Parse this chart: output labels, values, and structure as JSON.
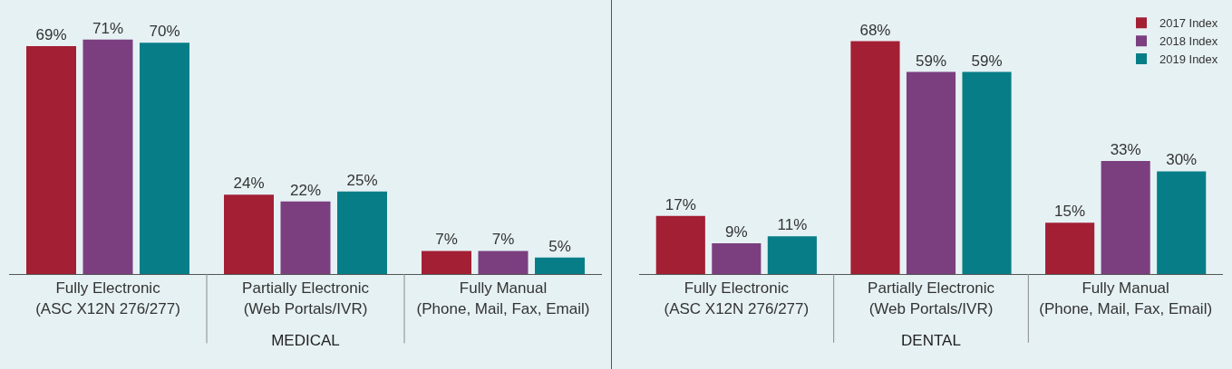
{
  "chart_data": [
    {
      "type": "bar",
      "xlabel": "MEDICAL",
      "categories": [
        "Fully Electronic\n(ASC X12N 276/277)",
        "Partially Electronic\n(Web Portals/IVR)",
        "Fully Manual\n(Phone, Mail, Fax, Email)"
      ],
      "series": [
        {
          "color": "#a31f34",
          "values": [
            69,
            24,
            7
          ],
          "value_labels": [
            "69%",
            "24%",
            "7%"
          ]
        },
        {
          "color": "#7b3f80",
          "values": [
            71,
            22,
            7
          ],
          "value_labels": [
            "71%",
            "22%",
            "7%"
          ]
        },
        {
          "color": "#077e87",
          "values": [
            70,
            25,
            5
          ],
          "value_labels": [
            "70%",
            "25%",
            "5%"
          ]
        }
      ],
      "legend": false,
      "tick_labels": "x"
    },
    {
      "type": "bar",
      "xlabel": "DENTAL",
      "categories": [
        "Fully Electronic\n(ASC X12N 276/277)",
        "Partially Electronic\n(Web Portals/IVR)",
        "Fully Manual\n(Phone, Mail, Fax, Email)"
      ],
      "series": [
        {
          "name": "2017 Index",
          "color": "#a31f34",
          "values": [
            17,
            68,
            15
          ],
          "value_labels": [
            "17%",
            "68%",
            "15%"
          ]
        },
        {
          "name": "2018 Index",
          "color": "#7b3f80",
          "values": [
            9,
            59,
            33
          ],
          "value_labels": [
            "9%",
            "59%",
            "33%"
          ]
        },
        {
          "name": "2019 Index",
          "color": "#077e87",
          "values": [
            11,
            59,
            30
          ],
          "value_labels": [
            "11%",
            "59%",
            "30%"
          ]
        }
      ],
      "legend": "top right",
      "tick_labels": "x"
    }
  ]
}
